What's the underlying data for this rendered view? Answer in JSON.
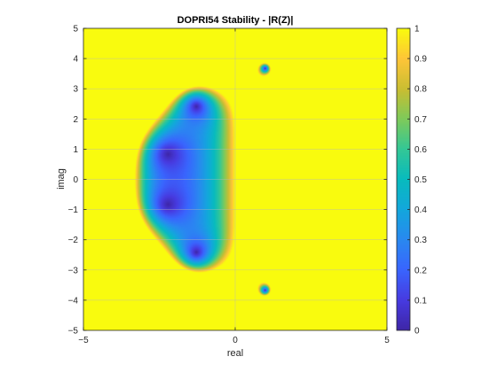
{
  "chart_data": {
    "type": "heatmap",
    "title": "DOPRI54 Stability - |R(Z)|",
    "xlabel": "real",
    "ylabel": "imag",
    "xlim": [
      -5,
      5
    ],
    "ylim": [
      -5,
      5
    ],
    "xticks": [
      -5,
      0,
      5
    ],
    "yticks": [
      -5,
      -4,
      -3,
      -2,
      -1,
      0,
      1,
      2,
      3,
      4,
      5
    ],
    "grid": true,
    "colormap": "parula",
    "clim": [
      0,
      1
    ],
    "colorbar": {
      "location": "right",
      "ticks": [
        0,
        0.1,
        0.2,
        0.3,
        0.4,
        0.5,
        0.6,
        0.7,
        0.8,
        0.9,
        1
      ],
      "tick_labels": [
        "0",
        "0.1",
        "0.2",
        "0.3",
        "0.4",
        "0.5",
        "0.6",
        "0.7",
        "0.8",
        "0.9",
        "1"
      ]
    },
    "values_above_clim": "clipped to 1 (yellow)",
    "stability_region_real_extent": [
      -3.3,
      0
    ],
    "minima": [
      {
        "real": -1.3,
        "imag": 2.4,
        "value": 0
      },
      {
        "real": -2.2,
        "imag": 0.85,
        "value": 0
      },
      {
        "real": -2.2,
        "imag": -0.85,
        "value": 0
      },
      {
        "real": -1.3,
        "imag": -2.4,
        "value": 0
      },
      {
        "real": 1.0,
        "imag": 3.65,
        "value": 0
      },
      {
        "real": 1.0,
        "imag": -3.65,
        "value": 0
      }
    ]
  }
}
